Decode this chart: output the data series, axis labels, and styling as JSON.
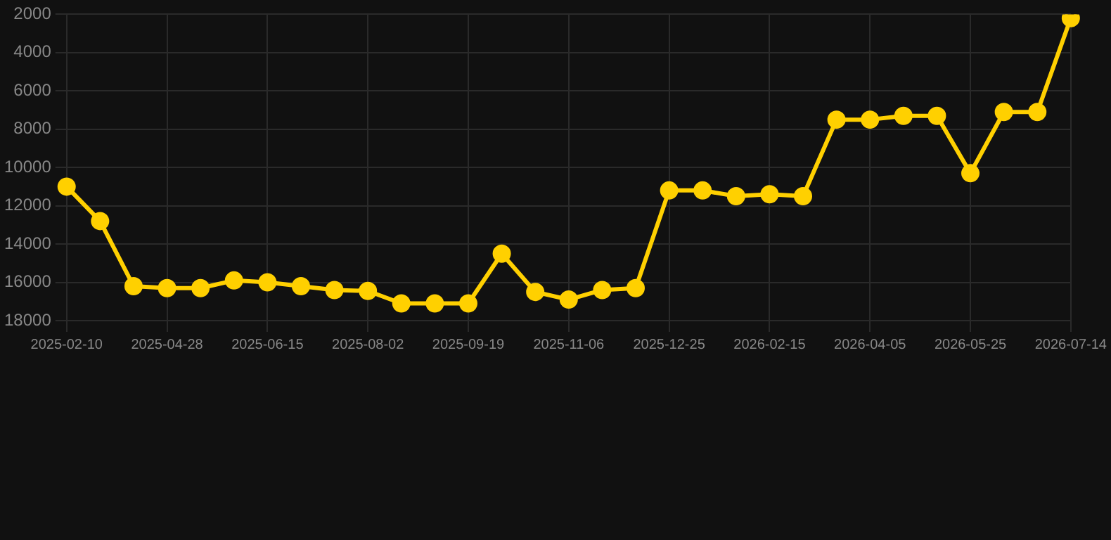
{
  "chart_data": {
    "type": "line",
    "categories": [
      "2025-02-10",
      null,
      null,
      "2025-04-28",
      null,
      null,
      "2025-06-15",
      null,
      null,
      "2025-08-02",
      null,
      null,
      "2025-09-19",
      null,
      null,
      "2025-11-06",
      null,
      null,
      "2025-12-25",
      null,
      null,
      "2026-02-15",
      null,
      null,
      "2026-04-05",
      null,
      null,
      "2026-05-25",
      null,
      null,
      "2026-07-14"
    ],
    "series": [
      {
        "color": "#ffd000",
        "values": [
          11000,
          12800,
          16200,
          16300,
          16300,
          15900,
          16000,
          16200,
          16400,
          16450,
          17100,
          17100,
          17100,
          14500,
          16500,
          16900,
          16400,
          16300,
          11200,
          11200,
          11500,
          11400,
          11500,
          7500,
          7500,
          7300,
          7300,
          10300,
          7100,
          7100,
          2200
        ]
      }
    ],
    "ylim": [
      18000,
      2000
    ],
    "yticks": [
      2000,
      4000,
      6000,
      8000,
      10000,
      12000,
      14000,
      16000,
      18000
    ],
    "grid": true,
    "marker": "circle",
    "line_style": "solid"
  }
}
